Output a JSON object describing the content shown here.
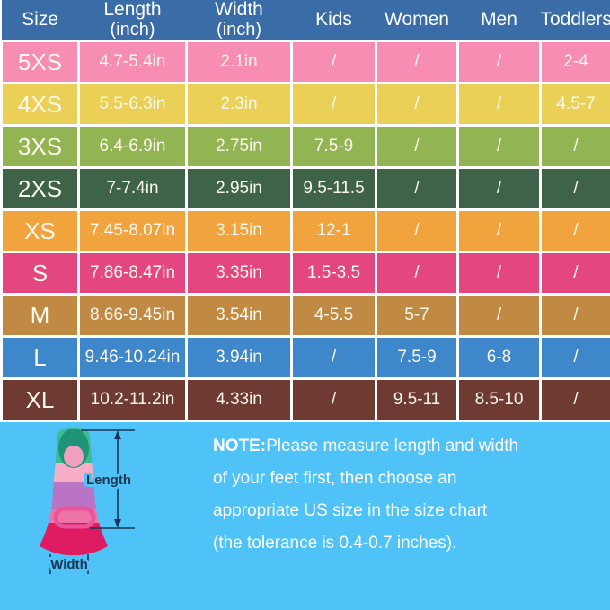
{
  "colors": {
    "header-bg": "#3a6ca8",
    "footer-bg": "#4fc2f8",
    "grid": "#ffffff",
    "header-text": "#ffffff",
    "cell-text": "#fdf8ec",
    "note-text": "#ffffff",
    "diagram-label": "#1c3553"
  },
  "table": {
    "columns": [
      {
        "key": "size",
        "label": "Size",
        "sub": ""
      },
      {
        "key": "length",
        "label": "Length",
        "sub": "(inch)"
      },
      {
        "key": "width",
        "label": "Width",
        "sub": "(inch)"
      },
      {
        "key": "kids",
        "label": "Kids",
        "sub": ""
      },
      {
        "key": "women",
        "label": "Women",
        "sub": ""
      },
      {
        "key": "men",
        "label": "Men",
        "sub": ""
      },
      {
        "key": "toddlers",
        "label": "Toddlers",
        "sub": ""
      }
    ],
    "rows": [
      {
        "color": "#f78db2",
        "size": "5XS",
        "length": "4.7-5.4in",
        "width": "2.1in",
        "kids": "/",
        "women": "/",
        "men": "/",
        "toddlers": "2-4"
      },
      {
        "color": "#ebd058",
        "size": "4XS",
        "length": "5.5-6.3in",
        "width": "2.3in",
        "kids": "/",
        "women": "/",
        "men": "/",
        "toddlers": "4.5-7"
      },
      {
        "color": "#92b452",
        "size": "3XS",
        "length": "6.4-6.9in",
        "width": "2.75in",
        "kids": "7.5-9",
        "women": "/",
        "men": "/",
        "toddlers": "/"
      },
      {
        "color": "#3e6349",
        "size": "2XS",
        "length": "7-7.4in",
        "width": "2.95in",
        "kids": "9.5-11.5",
        "women": "/",
        "men": "/",
        "toddlers": "/"
      },
      {
        "color": "#f1a33e",
        "size": "XS",
        "length": "7.45-8.07in",
        "width": "3.15in",
        "kids": "12-1",
        "women": "/",
        "men": "/",
        "toddlers": "/"
      },
      {
        "color": "#e4477f",
        "size": "S",
        "length": "7.86-8.47in",
        "width": "3.35in",
        "kids": "1.5-3.5",
        "women": "/",
        "men": "/",
        "toddlers": "/"
      },
      {
        "color": "#c08a44",
        "size": "M",
        "length": "8.66-9.45in",
        "width": "3.54in",
        "kids": "4-5.5",
        "women": "5-7",
        "men": "/",
        "toddlers": "/"
      },
      {
        "color": "#3d87ca",
        "size": "L",
        "length": "9.46-10.24in",
        "width": "3.94in",
        "kids": "/",
        "women": "7.5-9",
        "men": "6-8",
        "toddlers": "/"
      },
      {
        "color": "#6e3a31",
        "size": "XL",
        "length": "10.2-11.2in",
        "width": "4.33in",
        "kids": "/",
        "women": "9.5-11",
        "men": "8.5-10",
        "toddlers": "/"
      }
    ]
  },
  "note": {
    "prefix": "NOTE:",
    "lines": [
      "Please measure length and width",
      "of your feet first, then choose an",
      "appropriate US size in the size chart",
      "(the tolerance is 0.4-0.7 inches)."
    ]
  },
  "diagram": {
    "length_label": "Length",
    "width_label": "Width"
  }
}
